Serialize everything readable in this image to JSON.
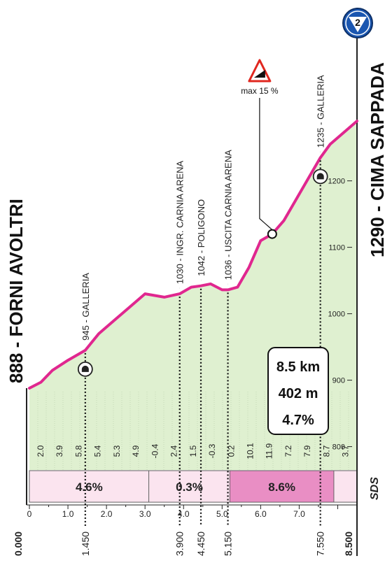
{
  "chart_data": {
    "type": "area",
    "title": "",
    "xlabel": "",
    "ylabel": "",
    "xlim": [
      0,
      8.5
    ],
    "ylim": [
      760,
      1300
    ],
    "x_ticks": [
      "0",
      "1.0",
      "2.0",
      "3.0",
      "4.0",
      "5.0",
      "6.0",
      "7.0"
    ],
    "y_ticks": [
      "800",
      "900",
      "1000",
      "1100",
      "1200"
    ],
    "profile": {
      "x": [
        0,
        0.3,
        0.6,
        1.0,
        1.45,
        1.8,
        2.2,
        2.6,
        3.0,
        3.5,
        3.9,
        4.2,
        4.45,
        4.7,
        5.0,
        5.15,
        5.4,
        5.7,
        6.0,
        6.3,
        6.6,
        6.9,
        7.2,
        7.55,
        7.8,
        8.1,
        8.5
      ],
      "y": [
        888,
        897,
        915,
        930,
        945,
        970,
        990,
        1010,
        1030,
        1025,
        1030,
        1040,
        1042,
        1045,
        1036,
        1036,
        1040,
        1070,
        1110,
        1120,
        1140,
        1170,
        1200,
        1235,
        1255,
        1270,
        1290
      ]
    },
    "segment_gradients": [
      "2.0",
      "3.9",
      "5.8",
      "5.4",
      "5.3",
      "4.9",
      "-0.4",
      "2.4",
      "1.5",
      "-0.3",
      "0.2",
      "10.1",
      "11.9",
      "7.2",
      "7.9",
      "8.7",
      "3.7"
    ],
    "average_bands": [
      {
        "label": "4.6%",
        "from_km": 0,
        "to_km": 3.1,
        "color": "#fbe4ef"
      },
      {
        "label": "0.3%",
        "from_km": 3.1,
        "to_km": 5.2,
        "color": "#fbe4ef"
      },
      {
        "label": "8.6%",
        "from_km": 5.2,
        "to_km": 7.9,
        "color": "#e98ec4"
      },
      {
        "label": "",
        "from_km": 7.9,
        "to_km": 8.5,
        "color": "#fbe4ef"
      }
    ],
    "waypoints": [
      {
        "km": 1.45,
        "elev": 945,
        "label": "945 - GALLERIA",
        "km_label": "1.450",
        "tunnel": true
      },
      {
        "km": 3.9,
        "elev": 1030,
        "label": "1030 - INGR. CARNIA ARENA",
        "km_label": "3.900",
        "tunnel": false
      },
      {
        "km": 4.45,
        "elev": 1042,
        "label": "1042 - POLIGONO",
        "km_label": "4.450",
        "tunnel": false
      },
      {
        "km": 5.15,
        "elev": 1036,
        "label": "1036 - USCITA CARNIA ARENA",
        "km_label": "5.150",
        "tunnel": false
      },
      {
        "km": 7.55,
        "elev": 1235,
        "label": "1235 - GALLERIA",
        "km_label": "7.550",
        "tunnel": true
      }
    ],
    "start": {
      "label": "888 - FORNI AVOLTRI",
      "km_label": "0.000"
    },
    "finish": {
      "label": "1290 - CIMA SAPPADA",
      "km_label": "8.500",
      "badge": "2"
    },
    "max_gradient": {
      "label": "max 15 %",
      "km": 6.3
    },
    "summary": {
      "distance": "8.5 km",
      "climb": "402 m",
      "average": "4.7%"
    },
    "brand": "SDS"
  },
  "colors": {
    "line": "#e0278f",
    "fill": "#dff0d0",
    "band_light": "#fbe4ef",
    "band_strong": "#e98ec4",
    "badge": "#1a56b0"
  }
}
